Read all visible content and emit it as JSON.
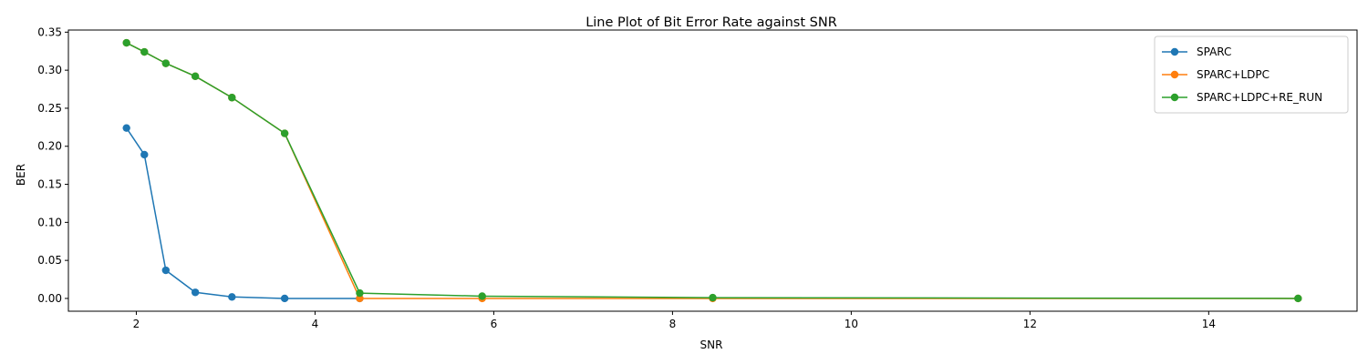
{
  "chart_data": {
    "type": "line",
    "title": "Line Plot of Bit Error Rate against SNR",
    "xlabel": "SNR",
    "ylabel": "BER",
    "xlim": [
      1.24,
      15.66
    ],
    "ylim": [
      -0.0168,
      0.3528
    ],
    "xticks": [
      2,
      4,
      6,
      8,
      10,
      12,
      14
    ],
    "xtick_labels": [
      "2",
      "4",
      "6",
      "8",
      "10",
      "12",
      "14"
    ],
    "yticks": [
      0.0,
      0.05,
      0.1,
      0.15,
      0.2,
      0.25,
      0.3,
      0.35
    ],
    "ytick_labels": [
      "0.00",
      "0.05",
      "0.10",
      "0.15",
      "0.20",
      "0.25",
      "0.30",
      "0.35"
    ],
    "grid": false,
    "legend_position": "top-right",
    "series": [
      {
        "name": "SPARC",
        "color": "#1f77b4",
        "x": [
          1.89,
          2.09,
          2.33,
          2.66,
          3.07,
          3.66,
          4.5
        ],
        "y": [
          0.224,
          0.189,
          0.037,
          0.008,
          0.002,
          0.0,
          0.0
        ]
      },
      {
        "name": "SPARC+LDPC",
        "color": "#ff7f0e",
        "x": [
          1.89,
          2.09,
          2.33,
          2.66,
          3.07,
          3.66,
          4.5,
          5.87,
          8.45,
          15.0
        ],
        "y": [
          0.336,
          0.324,
          0.309,
          0.292,
          0.264,
          0.217,
          0.0,
          0.0,
          0.0,
          0.0
        ]
      },
      {
        "name": "SPARC+LDPC+RE_RUN",
        "color": "#2ca02c",
        "x": [
          1.89,
          2.09,
          2.33,
          2.66,
          3.07,
          3.66,
          4.5,
          5.87,
          8.45,
          15.0
        ],
        "y": [
          0.336,
          0.324,
          0.309,
          0.292,
          0.264,
          0.217,
          0.007,
          0.003,
          0.001,
          0.0
        ]
      }
    ]
  }
}
